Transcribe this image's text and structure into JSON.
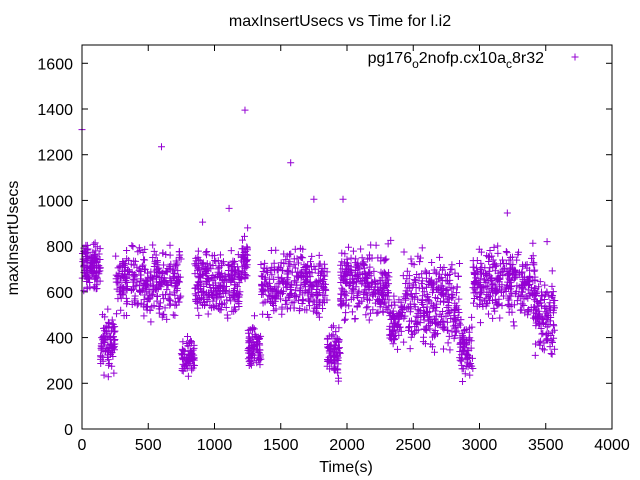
{
  "chart_data": {
    "type": "scatter",
    "title": "maxInsertUsecs vs Time for l.i2",
    "xlabel": "Time(s)",
    "ylabel": "maxInsertUsecs",
    "xlim": [
      0,
      4000
    ],
    "ylim": [
      0,
      1680
    ],
    "xticks": [
      0,
      500,
      1000,
      1500,
      2000,
      2500,
      3000,
      3500,
      4000
    ],
    "yticks": [
      0,
      200,
      400,
      600,
      800,
      1000,
      1200,
      1400,
      1600
    ],
    "grid": false,
    "legend_position": "top-right",
    "marker": "+",
    "series": [
      {
        "name": "pg176_o2nofp.cx10a_c8r32",
        "name_parts": {
          "base1": "pg176",
          "sub1": "o",
          "mid": "2nofp.cx10a",
          "sub2": "c",
          "end": "8r32"
        },
        "color": "#9400d3",
        "outliers": [
          [
            0,
            1310
          ],
          [
            600,
            1235
          ],
          [
            1230,
            1395
          ],
          [
            1575,
            1165
          ],
          [
            1750,
            1005
          ],
          [
            1970,
            1005
          ],
          [
            910,
            905
          ],
          [
            1110,
            965
          ],
          [
            1250,
            880
          ],
          [
            2330,
            825
          ],
          [
            3210,
            945
          ],
          [
            3510,
            820
          ]
        ],
        "segments": [
          {
            "x0": 0,
            "x1": 140,
            "low": 570,
            "high": 850,
            "n": 120
          },
          {
            "x0": 140,
            "x1": 250,
            "low": 200,
            "high": 560,
            "n": 90
          },
          {
            "x0": 250,
            "x1": 750,
            "low": 440,
            "high": 850,
            "n": 300
          },
          {
            "x0": 750,
            "x1": 850,
            "low": 200,
            "high": 420,
            "n": 70
          },
          {
            "x0": 850,
            "x1": 1200,
            "low": 420,
            "high": 830,
            "n": 260
          },
          {
            "x0": 1200,
            "x1": 1250,
            "low": 600,
            "high": 860,
            "n": 40
          },
          {
            "x0": 1250,
            "x1": 1350,
            "low": 200,
            "high": 520,
            "n": 80
          },
          {
            "x0": 1350,
            "x1": 1850,
            "low": 430,
            "high": 840,
            "n": 300
          },
          {
            "x0": 1850,
            "x1": 1950,
            "low": 190,
            "high": 480,
            "n": 80
          },
          {
            "x0": 1950,
            "x1": 2320,
            "low": 420,
            "high": 850,
            "n": 260
          },
          {
            "x0": 2320,
            "x1": 2420,
            "low": 330,
            "high": 620,
            "n": 70
          },
          {
            "x0": 2420,
            "x1": 2850,
            "low": 270,
            "high": 830,
            "n": 280
          },
          {
            "x0": 2850,
            "x1": 2950,
            "low": 170,
            "high": 520,
            "n": 70
          },
          {
            "x0": 2950,
            "x1": 3420,
            "low": 420,
            "high": 860,
            "n": 300
          },
          {
            "x0": 3420,
            "x1": 3570,
            "low": 230,
            "high": 740,
            "n": 110
          }
        ]
      }
    ]
  }
}
